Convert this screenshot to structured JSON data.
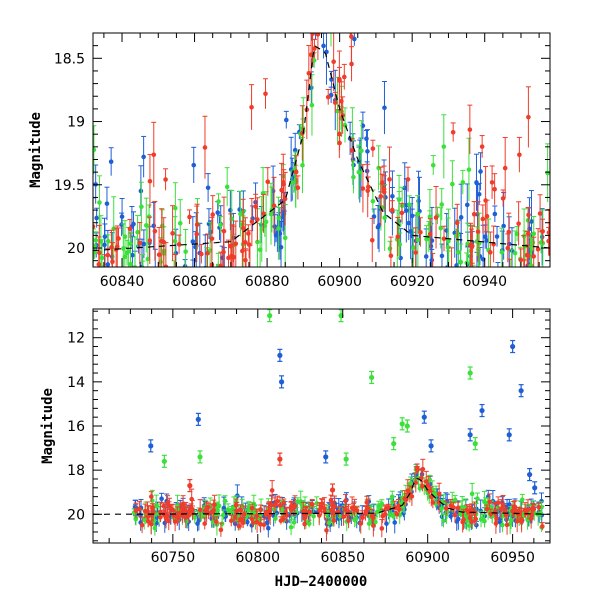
{
  "chart_data": [
    {
      "type": "scatter",
      "title": "",
      "ylabel": "Magnitude",
      "xlabel": "",
      "xlim": [
        60832,
        60958
      ],
      "ylim": [
        20.15,
        18.3
      ],
      "y_inverted": true,
      "xticks": [
        60840,
        60860,
        60880,
        60900,
        60920,
        60940
      ],
      "yticks": [
        18.5,
        19,
        19.5,
        20
      ],
      "ytick_labels": [
        "18.5",
        "19",
        "19.5",
        "20"
      ],
      "series": [
        {
          "name": "blue",
          "color": "#1f5fd6"
        },
        {
          "name": "green",
          "color": "#3be03b"
        },
        {
          "name": "red",
          "color": "#f03c2a"
        }
      ],
      "baseline_mag": 19.9,
      "peak": {
        "x": 60893,
        "y": 18.4
      },
      "fit_curve": {
        "x": [
          60832,
          60870,
          60885,
          60890,
          60893,
          60896,
          60900,
          60905,
          60912,
          60920,
          60958
        ],
        "y": [
          20.02,
          19.95,
          19.62,
          19.1,
          18.4,
          18.45,
          18.9,
          19.3,
          19.72,
          19.9,
          20.0
        ]
      }
    },
    {
      "type": "scatter",
      "title": "",
      "ylabel": "Magnitude",
      "xlabel": "HJD−2400000",
      "xlim": [
        60703,
        60972
      ],
      "ylim": [
        21.3,
        10.7
      ],
      "y_inverted": true,
      "xticks": [
        60750,
        60800,
        60850,
        60900,
        60950
      ],
      "yticks": [
        12,
        14,
        16,
        18,
        20
      ],
      "ytick_labels": [
        "12",
        "14",
        "16",
        "18",
        "20"
      ],
      "series": [
        {
          "name": "blue",
          "color": "#1f5fd6",
          "outliers": [
            [
              60737,
              16.9
            ],
            [
              60765,
              15.7
            ],
            [
              60813,
              12.8
            ],
            [
              60814,
              14.0
            ],
            [
              60840,
              17.4
            ],
            [
              60898,
              15.6
            ],
            [
              60902,
              16.9
            ],
            [
              60925,
              16.4
            ],
            [
              60932,
              15.3
            ],
            [
              60950,
              12.4
            ],
            [
              60955,
              14.4
            ],
            [
              60948,
              16.4
            ],
            [
              60960,
              18.2
            ],
            [
              60963,
              18.8
            ]
          ]
        },
        {
          "name": "green",
          "color": "#3be03b",
          "outliers": [
            [
              60807,
              11.0
            ],
            [
              60849,
              11.0
            ],
            [
              60867,
              13.8
            ],
            [
              60925,
              13.6
            ],
            [
              60928,
              16.8
            ],
            [
              60745,
              17.6
            ],
            [
              60766,
              17.4
            ],
            [
              60880,
              16.8
            ],
            [
              60852,
              17.5
            ],
            [
              60885,
              15.9
            ],
            [
              60888,
              16.0
            ]
          ]
        },
        {
          "name": "red",
          "color": "#f03c2a",
          "outliers": [
            [
              60813,
              17.5
            ],
            [
              60844,
              18.9
            ],
            [
              60760,
              18.7
            ]
          ]
        }
      ],
      "baseline_mag": 19.9,
      "peak": {
        "x": 60893,
        "y": 18.35
      },
      "fit_curve": {
        "x": [
          60703,
          60870,
          60885,
          60890,
          60893,
          60896,
          60900,
          60905,
          60912,
          60920,
          60972
        ],
        "y": [
          20.0,
          19.95,
          19.6,
          19.0,
          18.35,
          18.45,
          18.9,
          19.3,
          19.72,
          19.9,
          20.0
        ]
      }
    }
  ]
}
